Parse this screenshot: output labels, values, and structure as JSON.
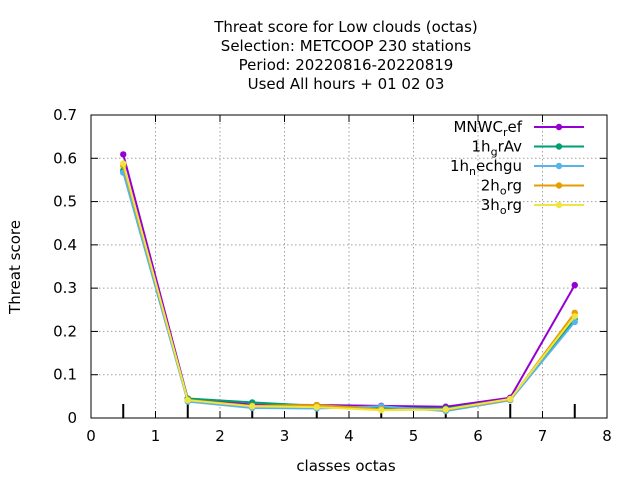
{
  "chart_data": {
    "type": "line",
    "title_lines": [
      "Threat score  for Low clouds (octas)",
      "Selection: METCOOP    230 stations",
      "Period: 20220816-20220819",
      "Used  All hours  + 01 02 03"
    ],
    "xlabel": "classes octas",
    "ylabel": "Threat score",
    "xlim": [
      0,
      8
    ],
    "ylim": [
      0,
      0.7
    ],
    "xticks": [
      0,
      1,
      2,
      3,
      4,
      5,
      6,
      7,
      8
    ],
    "yticks": [
      0,
      0.1,
      0.2,
      0.3,
      0.4,
      0.5,
      0.6,
      0.7
    ],
    "grid": true,
    "legend_position": "top-right",
    "x": [
      0.5,
      1.5,
      2.5,
      3.5,
      4.5,
      5.5,
      6.5,
      7.5
    ],
    "series": [
      {
        "name": "MNWC_ref",
        "legend_main": "MNWC",
        "legend_sub": "r",
        "legend_tail": "ef",
        "color": "#9400d3",
        "values": [
          0.609,
          0.045,
          0.031,
          0.03,
          0.028,
          0.026,
          0.047,
          0.307
        ]
      },
      {
        "name": "1h_grAv",
        "legend_main": "1h",
        "legend_sub": "g",
        "legend_tail": "rAv",
        "color": "#009e73",
        "values": [
          0.572,
          0.045,
          0.036,
          0.028,
          0.024,
          0.022,
          0.043,
          0.229
        ]
      },
      {
        "name": "1h_nechgu",
        "legend_main": "1h",
        "legend_sub": "n",
        "legend_tail": "echgu",
        "color": "#56b4e9",
        "values": [
          0.567,
          0.038,
          0.023,
          0.022,
          0.027,
          0.016,
          0.041,
          0.222
        ]
      },
      {
        "name": "2h_org",
        "legend_main": "2h",
        "legend_sub": "o",
        "legend_tail": "rg",
        "color": "#e69f00",
        "values": [
          0.583,
          0.042,
          0.028,
          0.03,
          0.02,
          0.019,
          0.043,
          0.243
        ]
      },
      {
        "name": "3h_org",
        "legend_main": "3h",
        "legend_sub": "o",
        "legend_tail": "rg",
        "color": "#f0e442",
        "values": [
          0.588,
          0.041,
          0.027,
          0.025,
          0.018,
          0.02,
          0.044,
          0.235
        ]
      }
    ]
  }
}
